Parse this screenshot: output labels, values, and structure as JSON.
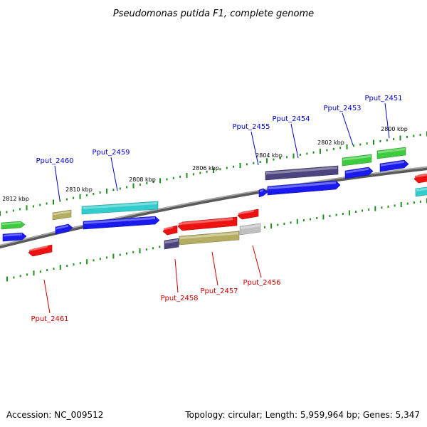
{
  "title": "Pseudomonas putida F1, complete genome",
  "accession": "Accession: NC_009512",
  "summary": "Topology: circular; Length: 5,959,964 bp; Genes: 5,347",
  "colors": {
    "backbone": "#8c8c8c",
    "tick": "#1f8f1f",
    "label_forward": "#0000cc",
    "label_reverse": "#cc0000",
    "gene_blue": "#1a1aee",
    "gene_green": "#3ecc3e",
    "gene_cyan": "#33cccc",
    "gene_red": "#ee1111",
    "gene_olive": "#b5ae62",
    "gene_navy": "#4b447e",
    "gene_gray": "#c0c0c0"
  },
  "ticks": {
    "upper": [
      "2812 kbp",
      "2810 kbp",
      "2808 kbp",
      "2806 kbp",
      "2804 kbp",
      "2802 kbp",
      "2800 kbp"
    ]
  },
  "genes": {
    "forward": [
      "Pput_2451",
      "Pput_2453",
      "Pput_2454",
      "Pput_2455",
      "Pput_2459",
      "Pput_2460"
    ],
    "reverse": [
      "Pput_2456",
      "Pput_2457",
      "Pput_2458",
      "Pput_2461"
    ]
  }
}
